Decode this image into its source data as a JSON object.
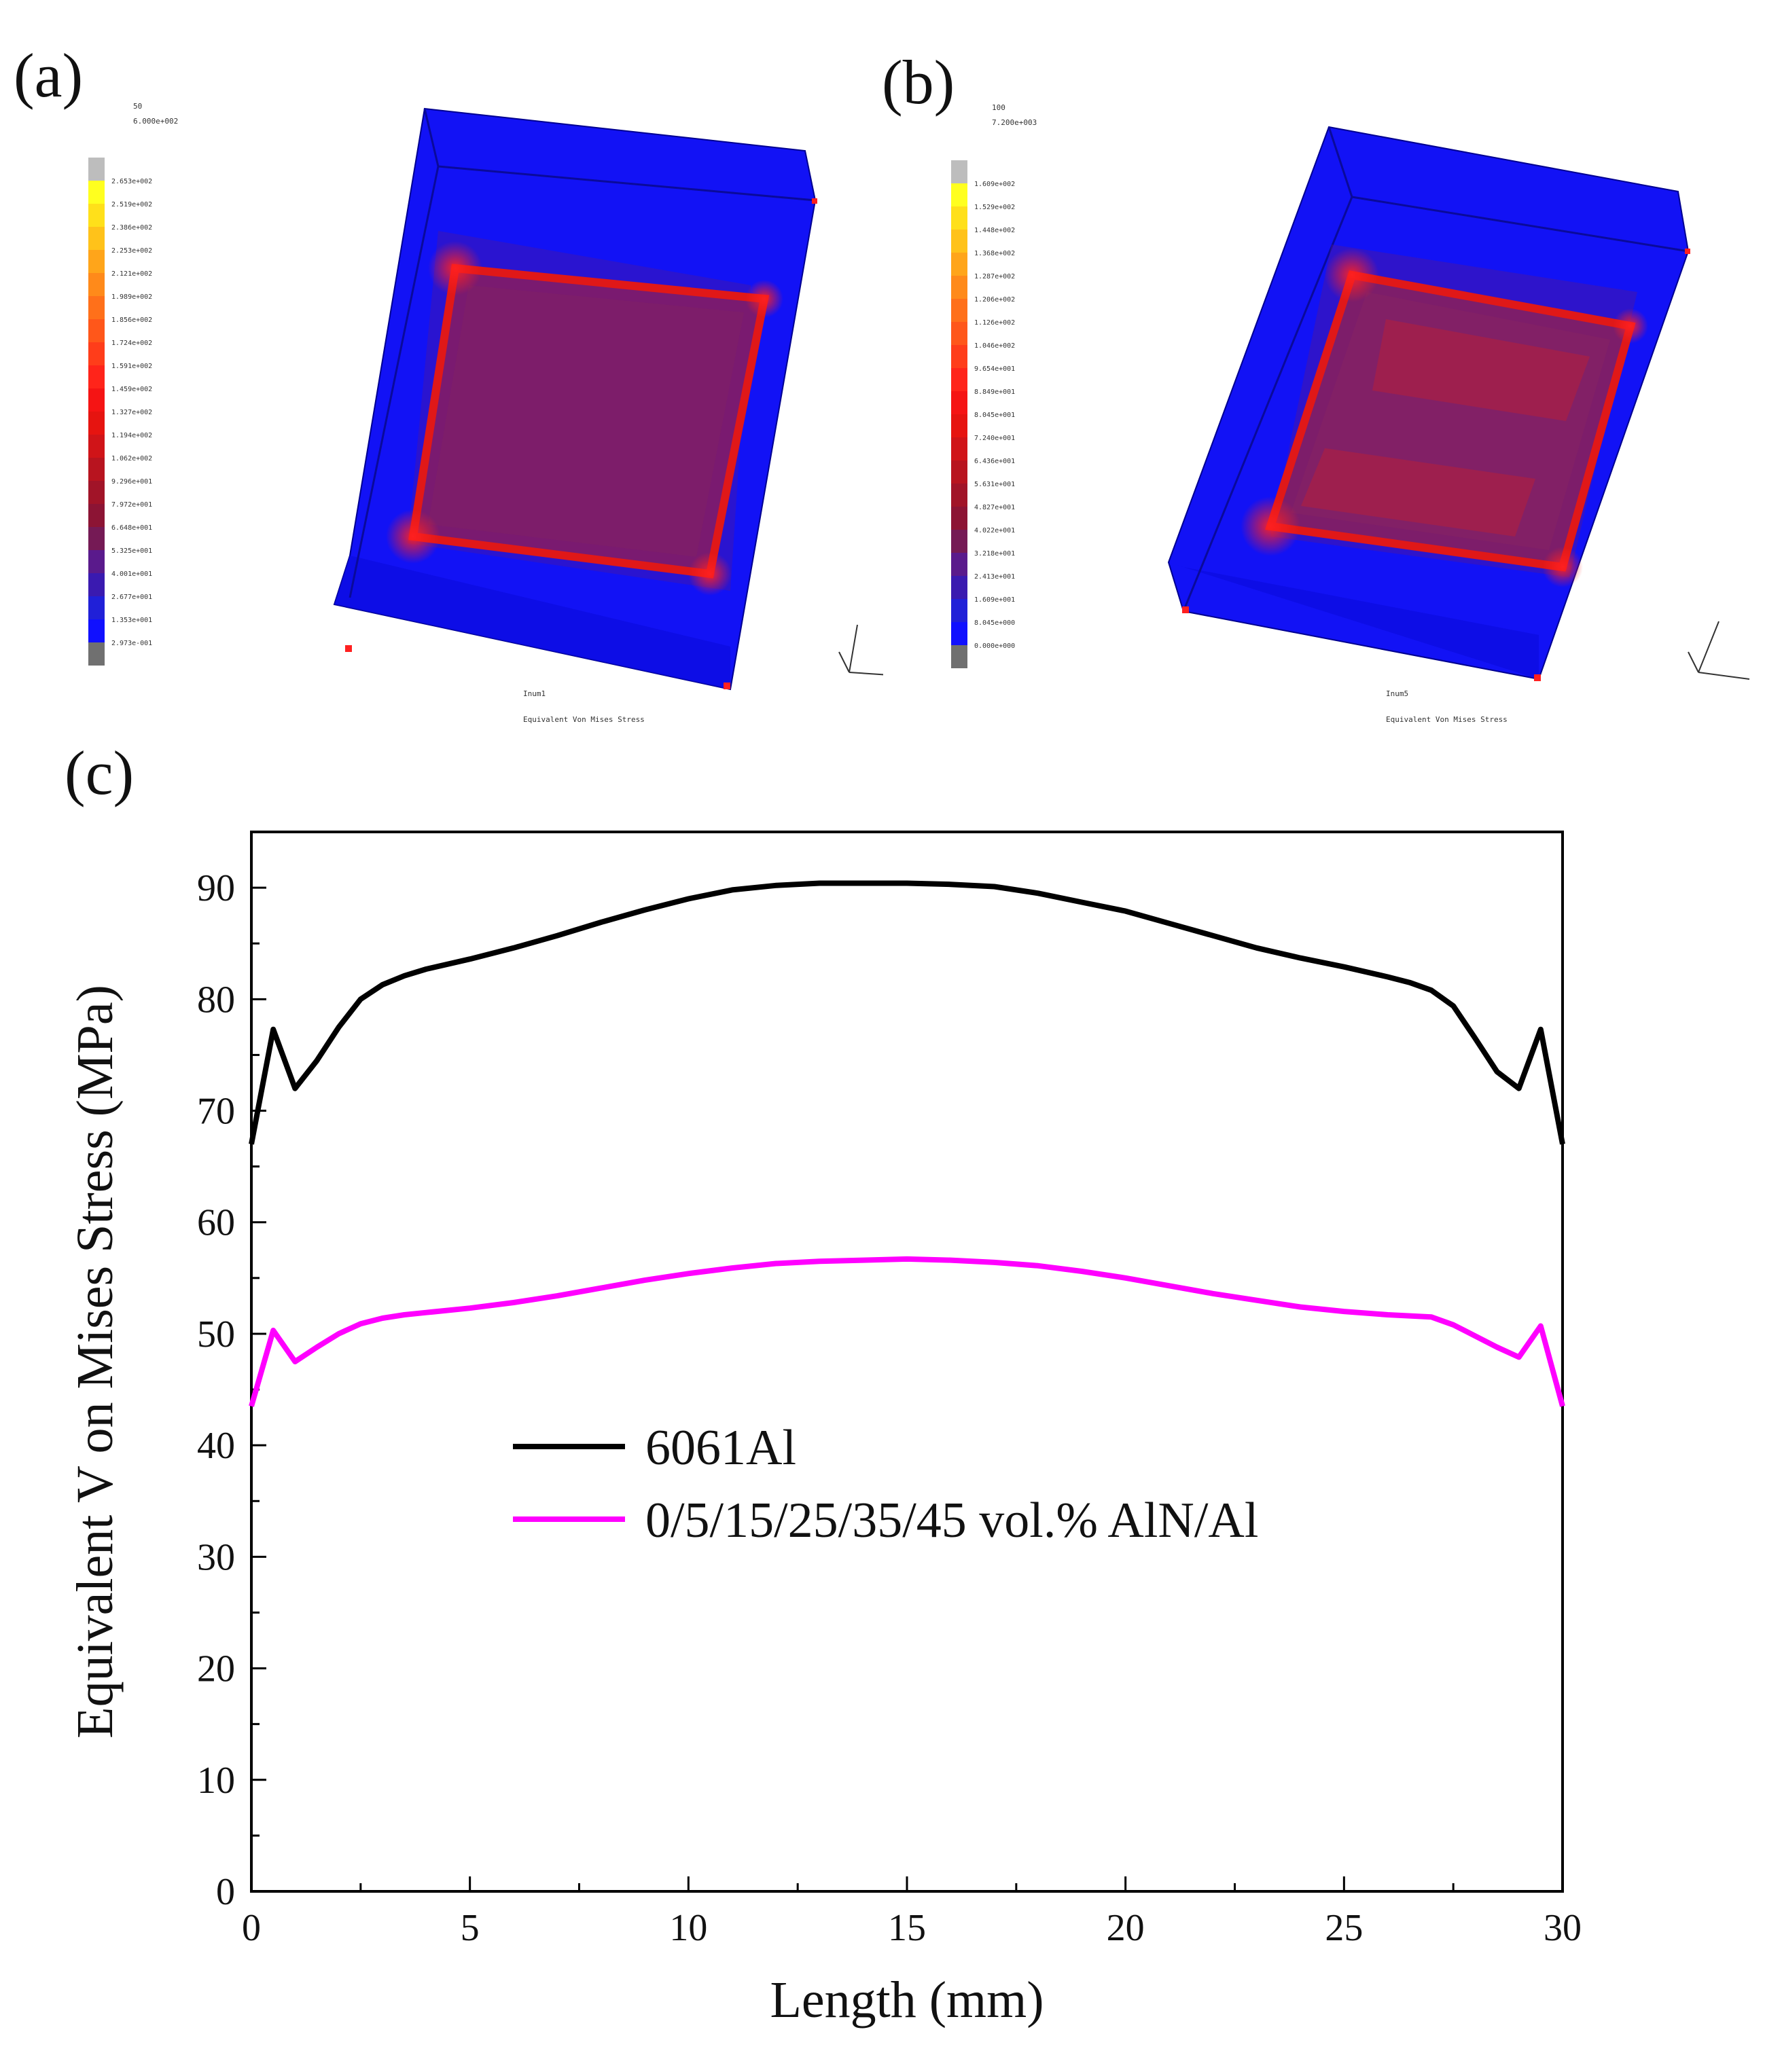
{
  "panels": {
    "a": {
      "label": "(a)",
      "header_1": "50",
      "header_2": "6.000e+002",
      "legend_values": [
        "2.653e+002",
        "2.519e+002",
        "2.386e+002",
        "2.253e+002",
        "2.121e+002",
        "1.989e+002",
        "1.856e+002",
        "1.724e+002",
        "1.591e+002",
        "1.459e+002",
        "1.327e+002",
        "1.194e+002",
        "1.062e+002",
        "9.296e+001",
        "7.972e+001",
        "6.648e+001",
        "5.325e+001",
        "4.001e+001",
        "2.677e+001",
        "1.353e+001",
        "2.973e-001"
      ],
      "footer_1": "Inum1",
      "footer_2": "Equivalent Von Mises Stress"
    },
    "b": {
      "label": "(b)",
      "header_1": "100",
      "header_2": "7.200e+003",
      "legend_values": [
        "1.609e+002",
        "1.529e+002",
        "1.448e+002",
        "1.368e+002",
        "1.287e+002",
        "1.206e+002",
        "1.126e+002",
        "1.046e+002",
        "9.654e+001",
        "8.849e+001",
        "8.045e+001",
        "7.240e+001",
        "6.436e+001",
        "5.631e+001",
        "4.827e+001",
        "4.022e+001",
        "3.218e+001",
        "2.413e+001",
        "1.609e+001",
        "8.045e+000",
        "0.000e+000"
      ],
      "footer_1": "Inum5",
      "footer_2": "Equivalent Von Mises Stress"
    },
    "c": {
      "label": "(c)"
    }
  },
  "colors": {
    "contour_ramp": [
      "#bdbdbd",
      "#ffff1f",
      "#ffe01a",
      "#ffc21a",
      "#ffa51a",
      "#ff8a1a",
      "#ff701a",
      "#ff571a",
      "#ff3d1a",
      "#ff241a",
      "#f51414",
      "#e61410",
      "#d01418",
      "#b8141f",
      "#a11428",
      "#8c1434",
      "#751a55",
      "#5a1a8c",
      "#3a1ab0",
      "#2020d8",
      "#1010ff",
      "#707070"
    ],
    "block_blue": "#1010f8",
    "series_6061": "#000000",
    "series_composite": "#ff00ff"
  },
  "chart_data": {
    "type": "line",
    "xlabel": "Length (mm)",
    "ylabel": "Equivalent V on Mises Stress (MPa)",
    "xlim": [
      0,
      30
    ],
    "ylim": [
      0,
      95
    ],
    "x_ticks": [
      0,
      5,
      10,
      15,
      20,
      25,
      30
    ],
    "y_ticks": [
      0,
      10,
      20,
      30,
      40,
      50,
      60,
      70,
      80,
      90
    ],
    "legend_position": "center-left",
    "series": [
      {
        "name": "6061Al",
        "color": "#000000",
        "x": [
          0,
          0.5,
          1,
          1.5,
          2,
          2.5,
          3,
          3.5,
          4,
          5,
          6,
          7,
          8,
          9,
          10,
          11,
          12,
          13,
          14,
          15,
          16,
          17,
          18,
          19,
          20,
          21,
          22,
          23,
          24,
          25,
          26,
          26.5,
          27,
          27.5,
          28,
          28.5,
          29,
          29.5,
          30
        ],
        "y": [
          67,
          77.3,
          72,
          74.5,
          77.5,
          80,
          81.3,
          82.1,
          82.7,
          83.6,
          84.6,
          85.7,
          86.9,
          88,
          89,
          89.8,
          90.2,
          90.4,
          90.4,
          90.4,
          90.3,
          90.1,
          89.5,
          88.7,
          87.9,
          86.8,
          85.7,
          84.6,
          83.7,
          82.9,
          82,
          81.5,
          80.8,
          79.4,
          76.5,
          73.5,
          72,
          77.3,
          67
        ]
      },
      {
        "name": "0/5/15/25/35/45 vol.% AlN/Al",
        "color": "#ff00ff",
        "x": [
          0,
          0.5,
          1,
          1.5,
          2,
          2.5,
          3,
          3.5,
          4,
          5,
          6,
          7,
          8,
          9,
          10,
          11,
          12,
          13,
          14,
          15,
          16,
          17,
          18,
          19,
          20,
          21,
          22,
          23,
          24,
          25,
          26,
          27,
          27.5,
          28,
          28.5,
          29,
          29.5,
          30
        ],
        "y": [
          43.5,
          50.3,
          47.5,
          48.8,
          50,
          50.9,
          51.4,
          51.7,
          51.9,
          52.3,
          52.8,
          53.4,
          54.1,
          54.8,
          55.4,
          55.9,
          56.3,
          56.5,
          56.6,
          56.7,
          56.6,
          56.4,
          56.1,
          55.6,
          55,
          54.3,
          53.6,
          53,
          52.4,
          52,
          51.7,
          51.5,
          50.8,
          49.8,
          48.8,
          47.9,
          50.7,
          43.5
        ]
      }
    ]
  }
}
